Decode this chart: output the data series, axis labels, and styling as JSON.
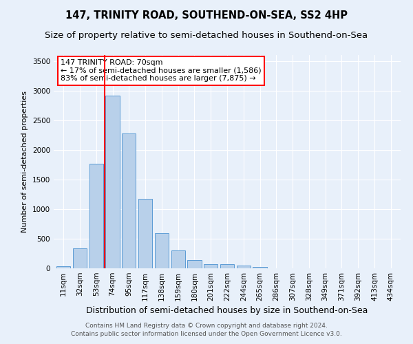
{
  "title": "147, TRINITY ROAD, SOUTHEND-ON-SEA, SS2 4HP",
  "subtitle": "Size of property relative to semi-detached houses in Southend-on-Sea",
  "xlabel": "Distribution of semi-detached houses by size in Southend-on-Sea",
  "ylabel": "Number of semi-detached properties",
  "footer_line1": "Contains HM Land Registry data © Crown copyright and database right 2024.",
  "footer_line2": "Contains public sector information licensed under the Open Government Licence v3.0.",
  "annotation_title": "147 TRINITY ROAD: 70sqm",
  "annotation_line2": "← 17% of semi-detached houses are smaller (1,586)",
  "annotation_line3": "83% of semi-detached houses are larger (7,875) →",
  "categories": [
    "11sqm",
    "32sqm",
    "53sqm",
    "74sqm",
    "95sqm",
    "117sqm",
    "138sqm",
    "159sqm",
    "180sqm",
    "201sqm",
    "222sqm",
    "244sqm",
    "265sqm",
    "286sqm",
    "307sqm",
    "328sqm",
    "349sqm",
    "371sqm",
    "392sqm",
    "413sqm",
    "434sqm"
  ],
  "values": [
    30,
    340,
    1760,
    2920,
    2280,
    1170,
    595,
    305,
    145,
    75,
    75,
    50,
    25,
    0,
    0,
    0,
    0,
    0,
    0,
    0,
    0
  ],
  "bar_color": "#b8d0ea",
  "bar_edge_color": "#5b9bd5",
  "vline_color": "red",
  "vline_index": 3,
  "ylim": [
    0,
    3600
  ],
  "yticks": [
    0,
    500,
    1000,
    1500,
    2000,
    2500,
    3000,
    3500
  ],
  "bg_color": "#e8f0fa",
  "grid_color": "#ffffff",
  "annotation_box_color": "#ffffff",
  "annotation_box_edge": "red",
  "title_fontsize": 10.5,
  "subtitle_fontsize": 9.5,
  "ylabel_fontsize": 8,
  "xlabel_fontsize": 9,
  "tick_fontsize": 7.5,
  "footer_fontsize": 6.5,
  "annotation_fontsize": 8
}
